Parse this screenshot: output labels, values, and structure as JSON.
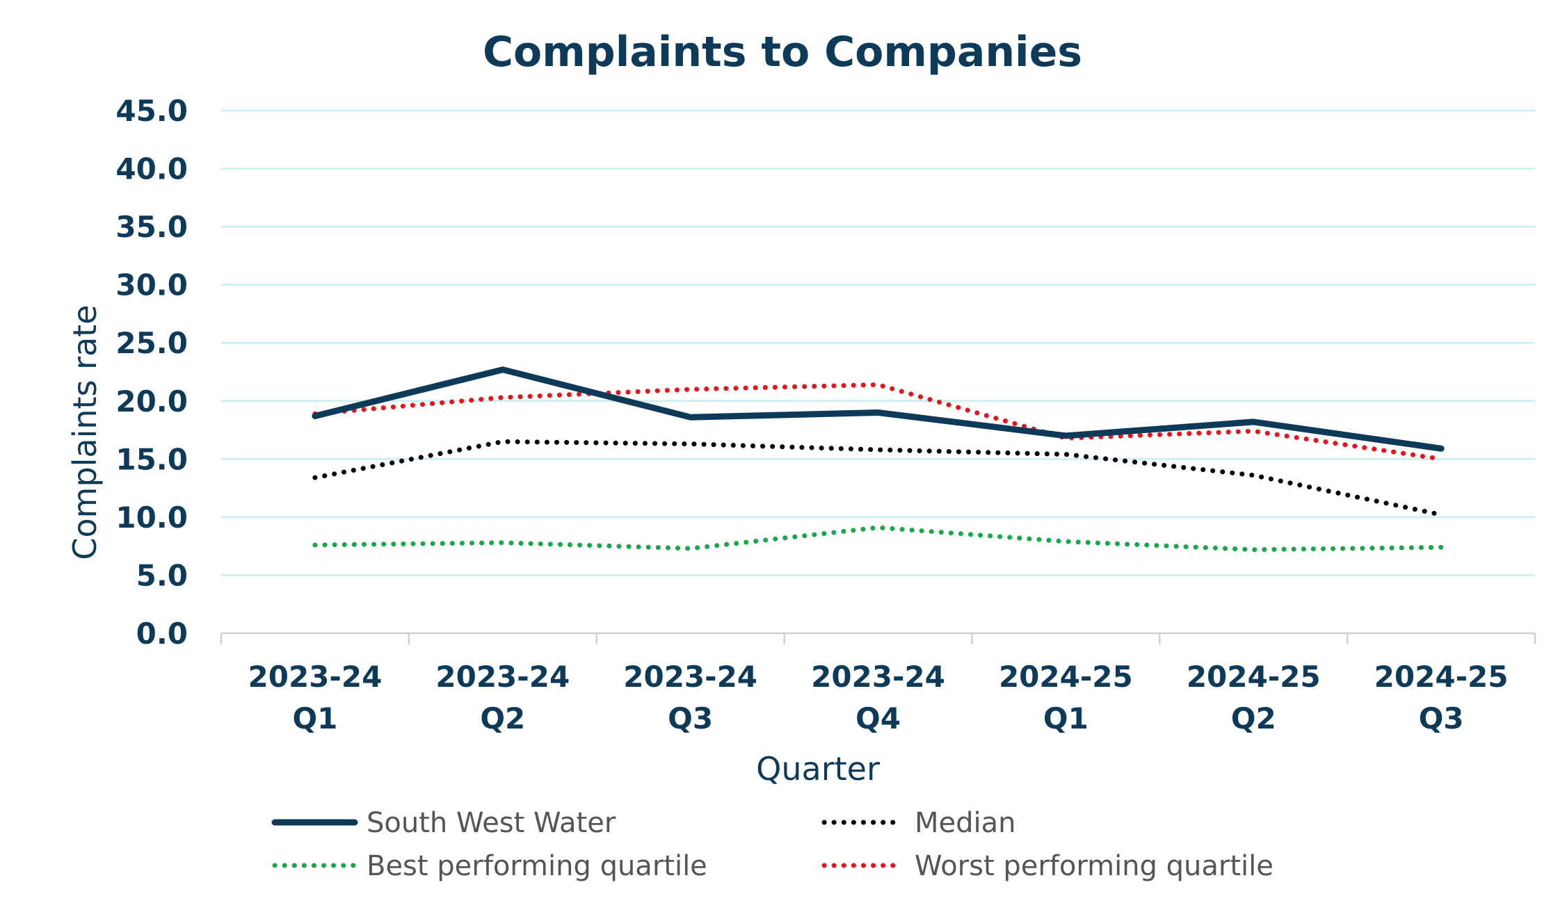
{
  "chart_data": {
    "type": "line",
    "title": "Complaints to Companies",
    "xlabel": "Quarter",
    "ylabel": "Complaints rate",
    "categories": [
      [
        "2023-24",
        "Q1"
      ],
      [
        "2023-24",
        "Q2"
      ],
      [
        "2023-24",
        "Q3"
      ],
      [
        "2023-24",
        "Q4"
      ],
      [
        "2024-25",
        "Q1"
      ],
      [
        "2024-25",
        "Q2"
      ],
      [
        "2024-25",
        "Q3"
      ]
    ],
    "ylim": [
      0,
      45
    ],
    "yticks": [
      "0.0",
      "5.0",
      "10.0",
      "15.0",
      "20.0",
      "25.0",
      "30.0",
      "35.0",
      "40.0",
      "45.0"
    ],
    "grid": true,
    "legend_position": "bottom",
    "series": [
      {
        "name": "South West Water",
        "values": [
          18.7,
          22.7,
          18.6,
          19.0,
          17.0,
          18.2,
          15.9
        ],
        "color": "#0e3a5a",
        "style": "solid"
      },
      {
        "name": "Median",
        "values": [
          13.4,
          16.5,
          16.3,
          15.8,
          15.4,
          13.6,
          10.2
        ],
        "color": "#000000",
        "style": "dotted"
      },
      {
        "name": "Best performing quartile",
        "values": [
          7.6,
          7.8,
          7.3,
          9.1,
          7.9,
          7.2,
          7.4
        ],
        "color": "#1aa64a",
        "style": "dotted"
      },
      {
        "name": "Worst performing quartile",
        "values": [
          18.9,
          20.3,
          21.0,
          21.4,
          16.8,
          17.4,
          15.0
        ],
        "color": "#e8141b",
        "style": "dotted"
      }
    ]
  }
}
